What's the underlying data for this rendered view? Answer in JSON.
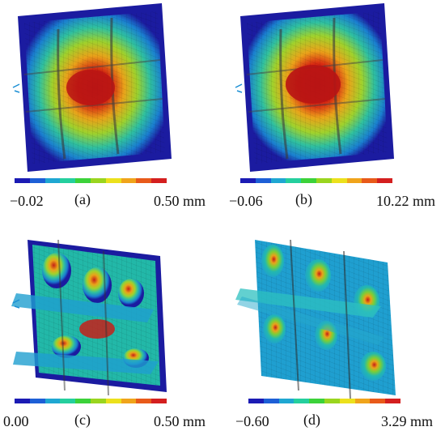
{
  "panels": [
    {
      "label": "(a)",
      "min": "−0.02",
      "max": "0.50 mm"
    },
    {
      "label": "(b)",
      "min": "−0.06",
      "max": "10.22 mm"
    },
    {
      "label": "(c)",
      "min": "0.00",
      "max": "0.50 mm"
    },
    {
      "label": "(d)",
      "min": "−0.60",
      "max": "3.29 mm"
    }
  ],
  "colorbar": [
    "#1b1bb4",
    "#1d5fd6",
    "#1fa7d2",
    "#25cf9e",
    "#3cd23a",
    "#9ad51f",
    "#ece11c",
    "#f0a41b",
    "#e85a1a",
    "#d41f1f"
  ]
}
